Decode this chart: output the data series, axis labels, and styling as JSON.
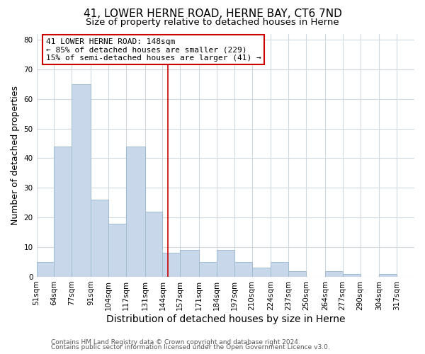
{
  "title": "41, LOWER HERNE ROAD, HERNE BAY, CT6 7ND",
  "subtitle": "Size of property relative to detached houses in Herne",
  "xlabel": "Distribution of detached houses by size in Herne",
  "ylabel": "Number of detached properties",
  "bar_color": "#c8d8ea",
  "bar_edge_color": "#a0bcd0",
  "bin_labels": [
    "51sqm",
    "64sqm",
    "77sqm",
    "91sqm",
    "104sqm",
    "117sqm",
    "131sqm",
    "144sqm",
    "157sqm",
    "171sqm",
    "184sqm",
    "197sqm",
    "210sqm",
    "224sqm",
    "237sqm",
    "250sqm",
    "264sqm",
    "277sqm",
    "290sqm",
    "304sqm",
    "317sqm"
  ],
  "bin_edges": [
    51,
    64,
    77,
    91,
    104,
    117,
    131,
    144,
    157,
    171,
    184,
    197,
    210,
    224,
    237,
    250,
    264,
    277,
    290,
    304,
    317,
    330
  ],
  "counts": [
    5,
    44,
    65,
    26,
    18,
    44,
    22,
    8,
    9,
    5,
    9,
    5,
    3,
    5,
    2,
    0,
    2,
    1,
    0,
    1,
    0
  ],
  "vline_x": 148,
  "vline_color": "#cc0000",
  "annotation_line1": "41 LOWER HERNE ROAD: 148sqm",
  "annotation_line2": "← 85% of detached houses are smaller (229)",
  "annotation_line3": "15% of semi-detached houses are larger (41) →",
  "annotation_box_edge_color": "#cc0000",
  "annotation_box_face_color": "#ffffff",
  "ylim": [
    0,
    82
  ],
  "yticks": [
    0,
    10,
    20,
    30,
    40,
    50,
    60,
    70,
    80
  ],
  "footer1": "Contains HM Land Registry data © Crown copyright and database right 2024.",
  "footer2": "Contains public sector information licensed under the Open Government Licence v3.0.",
  "background_color": "#ffffff",
  "grid_color": "#d0d8e0",
  "title_fontsize": 11,
  "subtitle_fontsize": 9.5,
  "xlabel_fontsize": 10,
  "ylabel_fontsize": 9,
  "tick_fontsize": 7.5,
  "annotation_fontsize": 8,
  "footer_fontsize": 6.5
}
